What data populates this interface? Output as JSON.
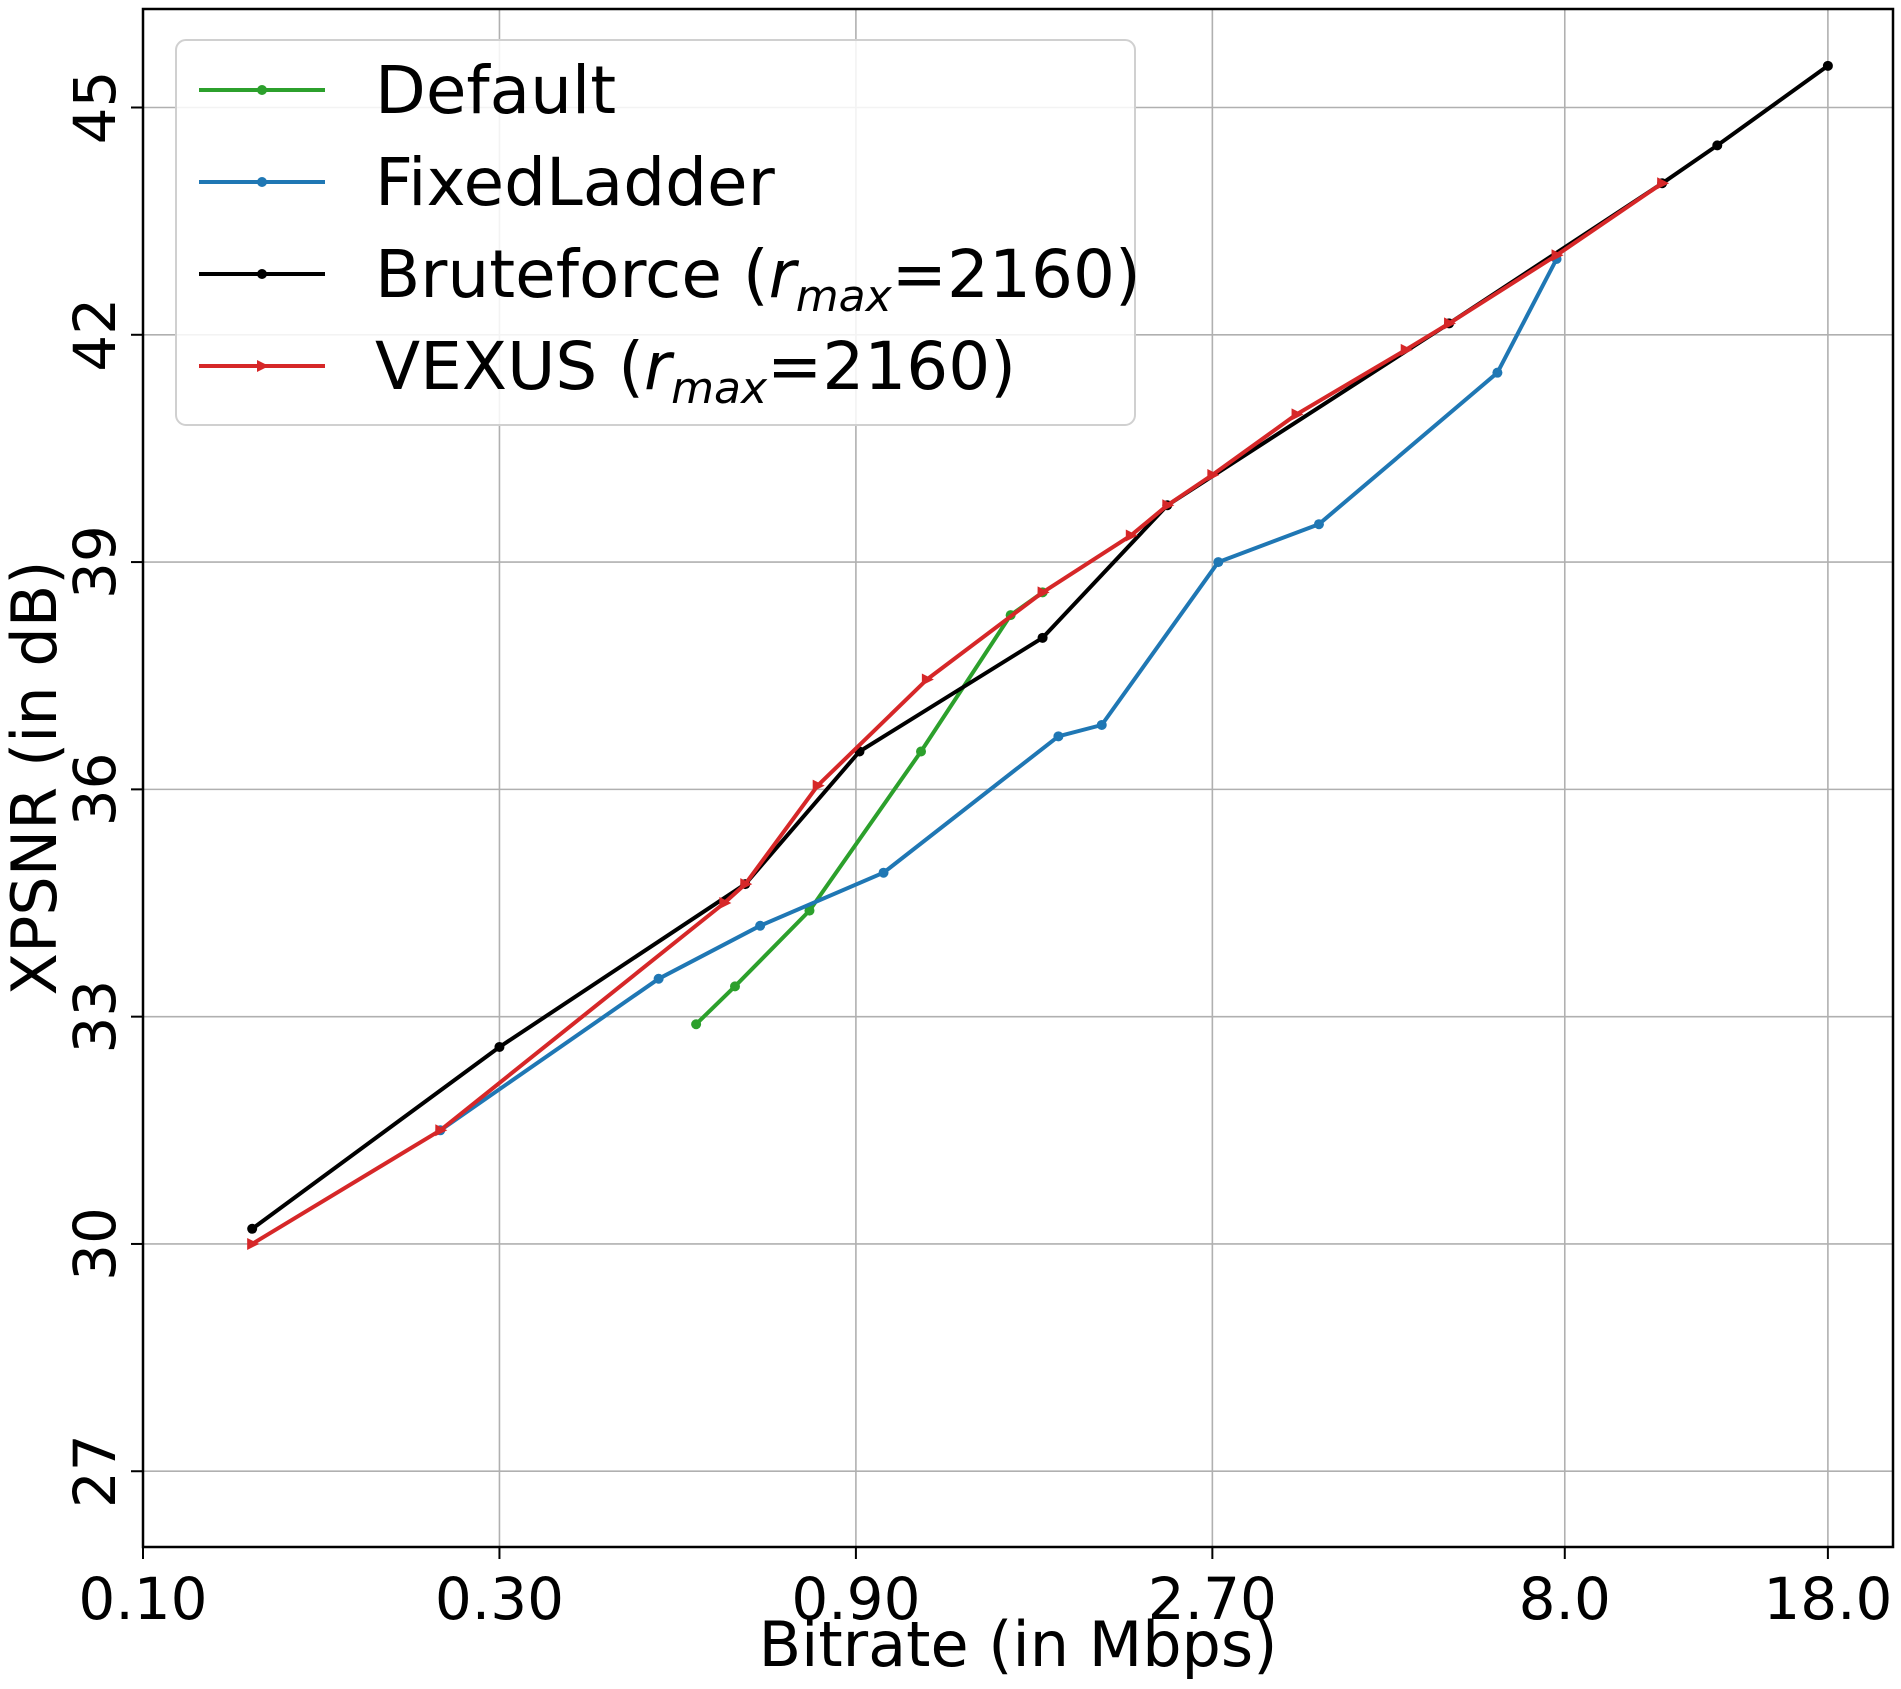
{
  "chart_data": {
    "type": "line",
    "xlabel": "Bitrate (in Mbps)",
    "ylabel": "XPSNR (in dB)",
    "x_scale": "log",
    "xlim": [
      0.1,
      22
    ],
    "ylim": [
      26,
      46.3
    ],
    "x_ticks": [
      0.1,
      0.3,
      0.9,
      2.7,
      8.0,
      18.0
    ],
    "x_tick_labels": [
      "0.10",
      "0.30",
      "0.90",
      "2.70",
      "8.0",
      "18.0"
    ],
    "y_ticks": [
      27,
      30,
      33,
      36,
      39,
      42,
      45
    ],
    "y_tick_labels": [
      "27",
      "30",
      "33",
      "36",
      "39",
      "42",
      "45"
    ],
    "grid": true,
    "legend_position": "top-left",
    "series": [
      {
        "name": "Default",
        "color": "#2ca02c",
        "marker": "circle",
        "points": [
          [
            0.55,
            32.9
          ],
          [
            0.62,
            33.4
          ],
          [
            0.78,
            34.4
          ],
          [
            1.1,
            36.5
          ],
          [
            1.45,
            38.3
          ],
          [
            1.6,
            38.6
          ]
        ]
      },
      {
        "name": "FixedLadder",
        "color": "#1f77b4",
        "marker": "circle",
        "points": [
          [
            0.25,
            31.5
          ],
          [
            0.49,
            33.5
          ],
          [
            0.67,
            34.2
          ],
          [
            0.98,
            34.9
          ],
          [
            1.68,
            36.7
          ],
          [
            1.92,
            36.85
          ],
          [
            2.75,
            39.0
          ],
          [
            3.75,
            39.5
          ],
          [
            6.5,
            41.5
          ],
          [
            7.8,
            43.0
          ]
        ]
      },
      {
        "name_prefix": "Bruteforce (",
        "name_var": "r",
        "name_sub": "max",
        "name_suffix": "=2160)",
        "color": "#000000",
        "marker": "circle",
        "points": [
          [
            0.14,
            30.2
          ],
          [
            0.3,
            32.6
          ],
          [
            0.64,
            34.75
          ],
          [
            0.91,
            36.5
          ],
          [
            1.6,
            38.0
          ],
          [
            2.35,
            39.75
          ],
          [
            5.6,
            42.15
          ],
          [
            10.8,
            44.0
          ],
          [
            12.8,
            44.5
          ],
          [
            18.0,
            45.55
          ]
        ]
      },
      {
        "name_prefix": "VEXUS (",
        "name_var": "r",
        "name_sub": "max",
        "name_suffix": "=2160)",
        "color": "#d62728",
        "marker": "triangle-right",
        "points": [
          [
            0.14,
            30.0
          ],
          [
            0.25,
            31.5
          ],
          [
            0.6,
            34.5
          ],
          [
            0.64,
            34.75
          ],
          [
            0.8,
            36.05
          ],
          [
            1.12,
            37.45
          ],
          [
            1.6,
            38.6
          ],
          [
            2.1,
            39.35
          ],
          [
            2.35,
            39.75
          ],
          [
            2.7,
            40.15
          ],
          [
            3.5,
            40.95
          ],
          [
            4.9,
            41.8
          ],
          [
            5.6,
            42.15
          ],
          [
            7.8,
            43.05
          ],
          [
            10.8,
            44.0
          ]
        ]
      }
    ]
  }
}
